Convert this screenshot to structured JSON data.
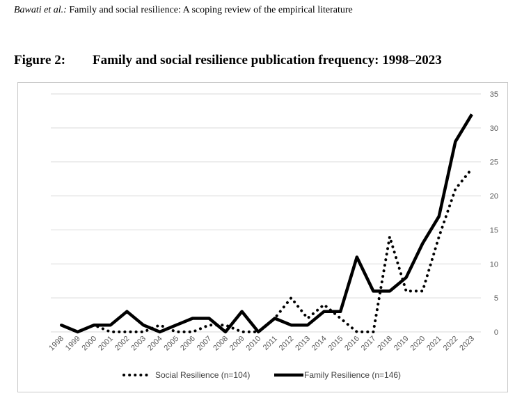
{
  "header": {
    "authors": "Bawati et al.:",
    "article_title": "Family and social resilience: A scoping review of the empirical literature"
  },
  "figure": {
    "label": "Figure 2:",
    "title": "Family and social resilience publication frequency: 1998–2023"
  },
  "chart_data": {
    "type": "line",
    "title": "",
    "xlabel": "",
    "ylabel": "",
    "x": [
      "1998",
      "1999",
      "2000",
      "2001",
      "2002",
      "2003",
      "2004",
      "2005",
      "2006",
      "2007",
      "2008",
      "2009",
      "2010",
      "2011",
      "2012",
      "2013",
      "2014",
      "2015",
      "2016",
      "2017",
      "2018",
      "2019",
      "2020",
      "2021",
      "2022",
      "2023"
    ],
    "ylim": [
      0,
      35
    ],
    "yticks": [
      0,
      5,
      10,
      15,
      20,
      25,
      30,
      35
    ],
    "y_axis_position": "right",
    "grid": true,
    "legend_position": "bottom",
    "series": [
      {
        "name": "Social Resilience (n=104)",
        "style": "dotted",
        "color": "#000000",
        "values": [
          1,
          0,
          1,
          0,
          0,
          0,
          1,
          0,
          0,
          1,
          1,
          0,
          0,
          2,
          5,
          2,
          4,
          2,
          0,
          0,
          14,
          6,
          6,
          14,
          21,
          24
        ]
      },
      {
        "name": "Family Resilience (n=146)",
        "style": "solid",
        "color": "#000000",
        "values": [
          1,
          0,
          1,
          1,
          3,
          1,
          0,
          1,
          2,
          2,
          0,
          3,
          0,
          2,
          1,
          1,
          3,
          3,
          11,
          6,
          6,
          8,
          13,
          17,
          28,
          32
        ]
      }
    ]
  }
}
